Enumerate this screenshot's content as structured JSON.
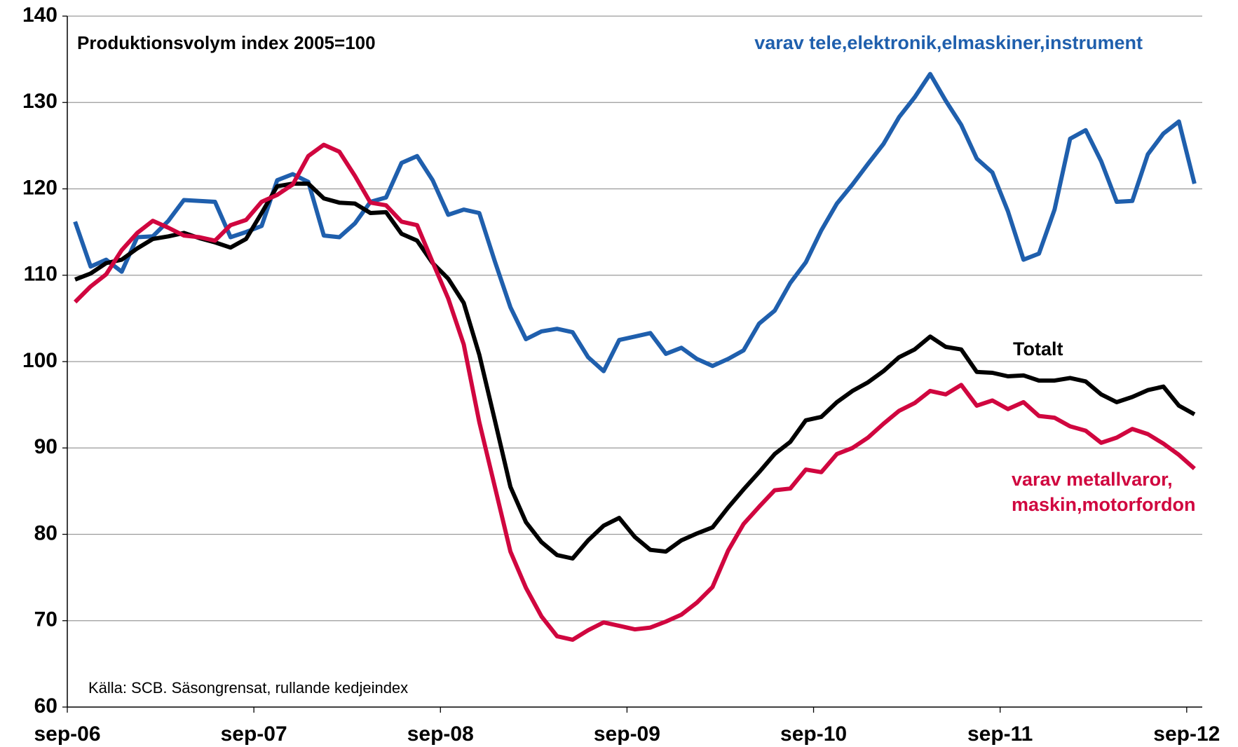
{
  "chart_data": {
    "type": "line",
    "subtitle": "Produktionsvolym index 2005=100",
    "source": "Källa: SCB. Säsongrensat, rullande kedjeindex",
    "categories": [
      "sep-06",
      null,
      null,
      null,
      null,
      null,
      null,
      null,
      null,
      null,
      null,
      null,
      "sep-07",
      null,
      null,
      null,
      null,
      null,
      null,
      null,
      null,
      null,
      null,
      null,
      "sep-08",
      null,
      null,
      null,
      null,
      null,
      null,
      null,
      null,
      null,
      null,
      null,
      "sep-09",
      null,
      null,
      null,
      null,
      null,
      null,
      null,
      null,
      null,
      null,
      null,
      "sep-10",
      null,
      null,
      null,
      null,
      null,
      null,
      null,
      null,
      null,
      null,
      null,
      "sep-11",
      null,
      null,
      null,
      null,
      null,
      null,
      null,
      null,
      null,
      null,
      null,
      "sep-12"
    ],
    "series": [
      {
        "name": "varav tele,elektronik,elmaskiner,instrument",
        "color": "#1f5fad",
        "values": [
          116.2,
          111,
          111.8,
          110.4,
          114.4,
          114.5,
          116.3,
          118.7,
          118.6,
          118.5,
          114.4,
          115,
          115.7,
          121,
          121.7,
          120.8,
          114.6,
          114.4,
          116,
          118.5,
          119,
          123,
          123.8,
          121,
          117,
          117.6,
          117.2,
          111.6,
          106.3,
          102.6,
          103.5,
          103.8,
          103.4,
          100.5,
          98.9,
          102.5,
          102.9,
          103.3,
          100.9,
          101.6,
          100.3,
          99.5,
          100.3,
          101.3,
          104.4,
          105.9,
          109.1,
          111.5,
          115.2,
          118.3,
          120.5,
          122.9,
          125.2,
          128.3,
          130.6,
          133.3,
          130.2,
          127.4,
          123.5,
          121.9,
          117.4,
          111.8,
          112.5,
          117.6,
          125.8,
          126.8,
          123.2,
          118.5,
          118.6,
          124,
          126.4,
          127.8,
          120.6
        ]
      },
      {
        "name": "Totalt",
        "color": "#000000",
        "values": [
          109.5,
          110.2,
          111.4,
          111.8,
          113.1,
          114.2,
          114.5,
          114.9,
          114.3,
          113.8,
          113.2,
          114.2,
          117.2,
          120.3,
          120.6,
          120.6,
          118.9,
          118.4,
          118.3,
          117.2,
          117.3,
          114.8,
          114,
          111.4,
          109.6,
          106.8,
          100.8,
          93.2,
          85.5,
          81.4,
          79.1,
          77.6,
          77.2,
          79.3,
          81,
          81.9,
          79.7,
          78.2,
          78,
          79.3,
          80.1,
          80.8,
          83.1,
          85.2,
          87.2,
          89.3,
          90.7,
          93.2,
          93.6,
          95.3,
          96.6,
          97.6,
          98.9,
          100.5,
          101.4,
          102.9,
          101.7,
          101.4,
          98.8,
          98.7,
          98.3,
          98.4,
          97.8,
          97.8,
          98.1,
          97.7,
          96.2,
          95.3,
          95.9,
          96.7,
          97.1,
          94.9,
          93.9
        ]
      },
      {
        "name": "varav metallvaror,\nmaskin,motorfordon",
        "color": "#d0063f",
        "values": [
          106.9,
          108.7,
          110.1,
          112.9,
          114.9,
          116.3,
          115.5,
          114.6,
          114.4,
          114,
          115.8,
          116.4,
          118.5,
          119.3,
          120.5,
          123.8,
          125.1,
          124.3,
          121.5,
          118.4,
          118.1,
          116.2,
          115.8,
          111.5,
          107.3,
          102,
          93,
          85.5,
          78,
          73.8,
          70.5,
          68.2,
          67.8,
          68.9,
          69.8,
          69.4,
          69,
          69.2,
          69.9,
          70.7,
          72.1,
          73.9,
          78.1,
          81.2,
          83.2,
          85.1,
          85.3,
          87.5,
          87.2,
          89.3,
          90,
          91.2,
          92.8,
          94.3,
          95.2,
          96.6,
          96.2,
          97.3,
          94.9,
          95.5,
          94.5,
          95.3,
          93.7,
          93.5,
          92.5,
          92,
          90.6,
          91.2,
          92.2,
          91.6,
          90.5,
          89.2,
          87.6
        ]
      }
    ],
    "ylim": [
      60,
      140
    ],
    "yticks": [
      60,
      70,
      80,
      90,
      100,
      110,
      120,
      130,
      140
    ],
    "grid": true
  }
}
